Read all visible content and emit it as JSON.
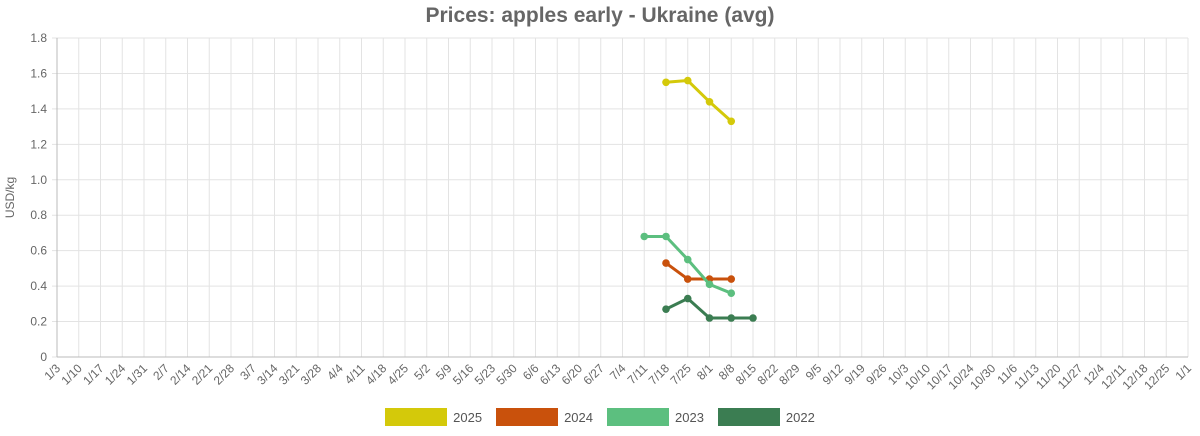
{
  "chart_data": {
    "type": "line",
    "title": "Prices: apples early - Ukraine (avg)",
    "ylabel": "USD/kg",
    "xlabel": "",
    "ylim": [
      0,
      1.8
    ],
    "yticks": [
      "0",
      "0.2",
      "0.4",
      "0.6",
      "0.8",
      "1.0",
      "1.2",
      "1.4",
      "1.6",
      "1.8"
    ],
    "ytick_values": [
      0,
      0.2,
      0.4,
      0.6,
      0.8,
      1.0,
      1.2,
      1.4,
      1.6,
      1.8
    ],
    "categories": [
      "1/3",
      "1/10",
      "1/17",
      "1/24",
      "1/31",
      "2/7",
      "2/14",
      "2/21",
      "2/28",
      "3/7",
      "3/14",
      "3/21",
      "3/28",
      "4/4",
      "4/11",
      "4/18",
      "4/25",
      "5/2",
      "5/9",
      "5/16",
      "5/23",
      "5/30",
      "6/6",
      "6/13",
      "6/20",
      "6/27",
      "7/4",
      "7/11",
      "7/18",
      "7/25",
      "8/1",
      "8/8",
      "8/15",
      "8/22",
      "8/29",
      "9/5",
      "9/12",
      "9/19",
      "9/26",
      "10/3",
      "10/10",
      "10/17",
      "10/24",
      "10/30",
      "11/6",
      "11/13",
      "11/20",
      "11/27",
      "12/4",
      "12/11",
      "12/18",
      "12/25",
      "1/1"
    ],
    "grid": true,
    "legend_position": "bottom",
    "series": [
      {
        "name": "2025",
        "color": "#d4c90a",
        "points": [
          [
            "7/18",
            1.55
          ],
          [
            "7/25",
            1.56
          ],
          [
            "8/1",
            1.44
          ],
          [
            "8/8",
            1.33
          ]
        ]
      },
      {
        "name": "2024",
        "color": "#c9510c",
        "points": [
          [
            "7/18",
            0.53
          ],
          [
            "7/25",
            0.44
          ],
          [
            "8/1",
            0.44
          ],
          [
            "8/8",
            0.44
          ]
        ]
      },
      {
        "name": "2023",
        "color": "#5cbf7f",
        "points": [
          [
            "7/11",
            0.68
          ],
          [
            "7/18",
            0.68
          ],
          [
            "7/25",
            0.55
          ],
          [
            "8/1",
            0.41
          ],
          [
            "8/8",
            0.36
          ]
        ]
      },
      {
        "name": "2022",
        "color": "#3b7d52",
        "points": [
          [
            "7/18",
            0.27
          ],
          [
            "7/25",
            0.33
          ],
          [
            "8/1",
            0.22
          ],
          [
            "8/8",
            0.22
          ],
          [
            "8/15",
            0.22
          ]
        ]
      }
    ]
  }
}
